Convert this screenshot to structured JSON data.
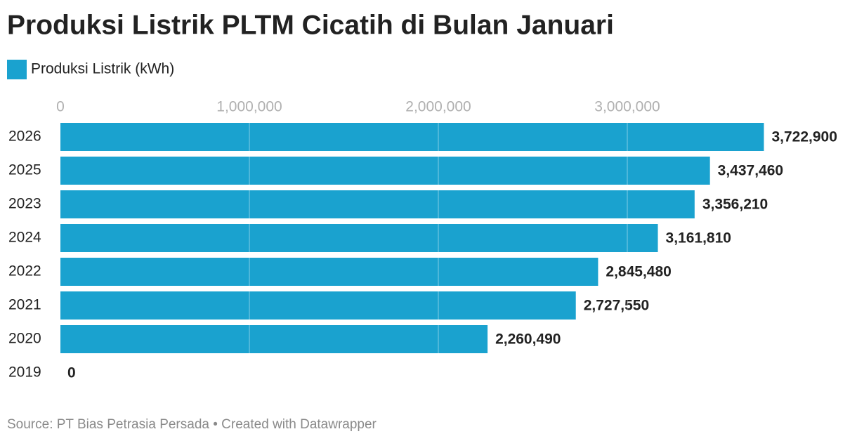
{
  "chart_data": {
    "type": "hbar",
    "title": "Produksi Listrik PLTM Cicatih di Bulan Januari",
    "categories": [
      "2026",
      "2025",
      "2023",
      "2024",
      "2022",
      "2021",
      "2020",
      "2019"
    ],
    "series": [
      {
        "name": "Produksi Listrik (kWh)",
        "color": "#1aa2cf",
        "values": [
          3722900,
          3437460,
          3356210,
          3161810,
          2845480,
          2727550,
          2260490,
          0
        ],
        "value_labels": [
          "3,722,900",
          "3,437,460",
          "3,356,210",
          "3,161,810",
          "2,845,480",
          "2,727,550",
          "2,260,490",
          "0"
        ]
      }
    ],
    "xlim": [
      0,
      4000000
    ],
    "xticks": [
      0,
      {
        "value": 1000000,
        "label": "1,000,000"
      },
      {
        "value": 2000000,
        "label": "2,000,000"
      },
      {
        "value": 3000000,
        "label": "3,000,000"
      }
    ],
    "grid": true,
    "source": "Source: PT Bias Petrasia Persada • Created with Datawrapper"
  }
}
